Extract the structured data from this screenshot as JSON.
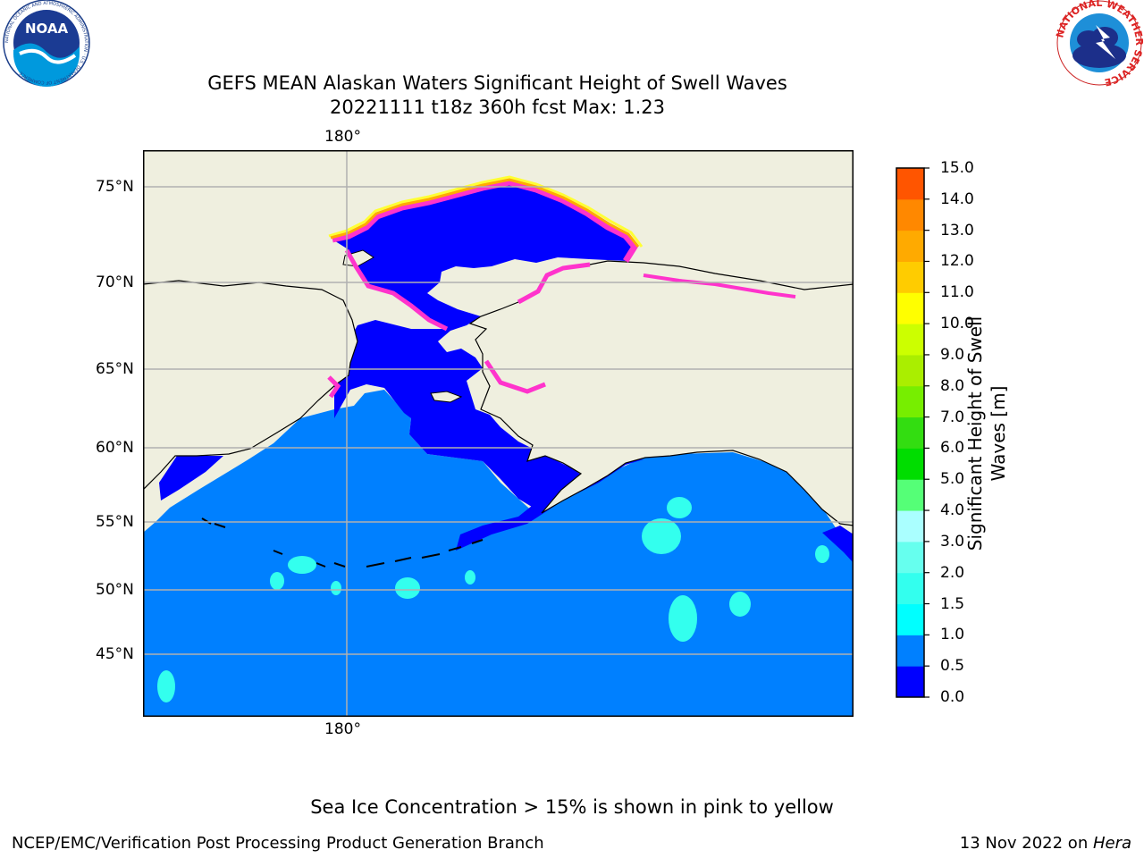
{
  "header": {
    "title_line1": "GEFS MEAN Alaskan Waters Significant Height of Swell Waves",
    "title_line2": "20221111 t18z 360h fcst   Max: 1.23"
  },
  "logos": {
    "noaa_text": "NOAA",
    "noaa_ring_text": "NATIONAL OCEANIC AND ATMOSPHERIC ADMINISTRATION · U.S. DEPARTMENT OF COMMERCE",
    "nws_ring_text": "NATIONAL WEATHER SERVICE"
  },
  "map": {
    "lon_label_top": "180°",
    "lon_label_bottom": "180°",
    "lat_labels": [
      "75°N",
      "70°N",
      "65°N",
      "60°N",
      "55°N",
      "50°N",
      "45°N"
    ],
    "colors": {
      "land": "#efefdf",
      "ocean_shallow": "#0000ff",
      "ocean": "#0080ff",
      "swell_high": "#33ffee",
      "ice_pink": "#ff33cc",
      "ice_orange": "#ffaa00",
      "ice_yellow": "#ffff33",
      "grid": "#b0b0b0"
    }
  },
  "colorbar": {
    "label": "Significant Height of Swell Waves [m]",
    "label_line1": "Significant Height of Swell",
    "label_line2": "Waves [m]",
    "ticks": [
      "15.0",
      "14.0",
      "13.0",
      "12.0",
      "11.0",
      "10.0",
      "9.0",
      "8.0",
      "7.0",
      "6.0",
      "5.0",
      "4.0",
      "3.0",
      "2.0",
      "1.5",
      "1.0",
      "0.5",
      "0.0"
    ],
    "colors_bottom_to_top": [
      "#0000ff",
      "#0080ff",
      "#00ffff",
      "#33ffee",
      "#66ffee",
      "#aaffff",
      "#55ff77",
      "#00dd00",
      "#33dd11",
      "#77ee00",
      "#aaee00",
      "#ccff00",
      "#ffff00",
      "#ffcc00",
      "#ffaa00",
      "#ff8800",
      "#ff5500",
      "#ff3300",
      "#ff0000"
    ]
  },
  "footer": {
    "note": "Sea Ice Concentration > 15% is shown in pink to yellow",
    "left": "NCEP/EMC/Verification Post Processing Product Generation Branch",
    "date": "13 Nov 2022 on ",
    "machine": "Hera"
  }
}
